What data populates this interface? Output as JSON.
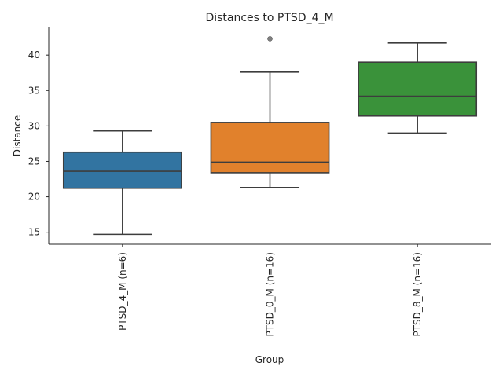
{
  "chart_data": {
    "type": "box",
    "title": "Distances to PTSD_4_M",
    "xlabel": "Group",
    "ylabel": "Distance",
    "ylim": [
      13.3,
      43.9
    ],
    "yticks": [
      15,
      20,
      25,
      30,
      35,
      40
    ],
    "categories": [
      "PTSD_4_M (n=6)",
      "PTSD_0_M (n=16)",
      "PTSD_8_M (n=16)"
    ],
    "boxes": [
      {
        "group": "PTSD_4_M (n=6)",
        "whisker_low": 14.7,
        "q1": 21.2,
        "median": 23.6,
        "q3": 26.3,
        "whisker_high": 29.3,
        "outliers": [],
        "color": "#3274a1"
      },
      {
        "group": "PTSD_0_M (n=16)",
        "whisker_low": 21.3,
        "q1": 23.4,
        "median": 24.9,
        "q3": 30.5,
        "whisker_high": 37.6,
        "outliers": [
          42.3
        ],
        "color": "#e1812c"
      },
      {
        "group": "PTSD_8_M (n=16)",
        "whisker_low": 29.0,
        "q1": 31.4,
        "median": 34.2,
        "q3": 39.0,
        "whisker_high": 41.7,
        "outliers": [],
        "color": "#3a923a"
      }
    ],
    "line_color": "#3d3d3d",
    "outlier_color": "#7f7f7f"
  }
}
